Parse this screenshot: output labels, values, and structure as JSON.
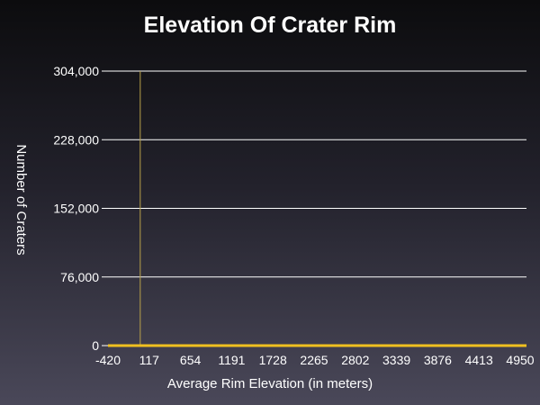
{
  "chart_data": {
    "type": "line",
    "title": "Elevation Of Crater Rim",
    "xlabel": "Average Rim Elevation (in meters)",
    "ylabel": "Number of Craters",
    "x_ticks": [
      "-420",
      "117",
      "654",
      "1191",
      "1728",
      "2265",
      "2802",
      "3339",
      "3876",
      "4413",
      "4950"
    ],
    "x_range": [
      -420,
      4950
    ],
    "y_ticks": [
      "0",
      "76,000",
      "152,000",
      "228,000",
      "304,000"
    ],
    "ylim": [
      0,
      304000
    ],
    "grid": "horizontal",
    "series": [
      {
        "x": [
          -420,
          -100,
          0,
          100,
          117,
          654,
          1191,
          1728,
          2265,
          2802,
          3339,
          3876,
          4413,
          4950
        ],
        "y": [
          0,
          0,
          0,
          0,
          0,
          0,
          0,
          0,
          0,
          0,
          0,
          0,
          0,
          0
        ]
      }
    ],
    "annotations": [
      {
        "x": 0,
        "y_top": 304000
      }
    ],
    "colors": {
      "series": "#f0c020",
      "annotation_line": "#b9a24a",
      "grid": "#ffffff",
      "text": "#ffffff"
    }
  }
}
